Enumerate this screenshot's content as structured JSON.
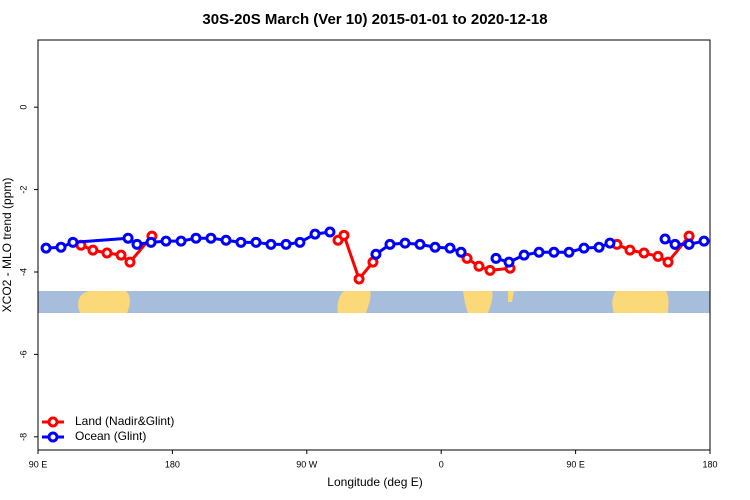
{
  "chart_data": {
    "type": "line",
    "title": "30S-20S March (Ver 10)   2015-01-01 to 2020-12-18",
    "x_label": "Longitude (deg E)",
    "y_label": "XCO2 - MLO trend (ppm)",
    "xlim": [
      90,
      540
    ],
    "xticks": [
      {
        "value": 90,
        "label": "90 E"
      },
      {
        "value": 180,
        "label": "180"
      },
      {
        "value": 270,
        "label": "90 W"
      },
      {
        "value": 360,
        "label": "0"
      },
      {
        "value": 450,
        "label": "90 E"
      },
      {
        "value": 540,
        "label": "180"
      }
    ],
    "ylim": [
      -8.32,
      1.63
    ],
    "yticks": [
      0,
      -2,
      -4,
      -6,
      -8
    ],
    "legend": "bottom-left",
    "series": [
      {
        "name": "Land (Nadir&Glint)",
        "color": "#ff0000",
        "x": [
          118.8,
          126.8,
          136.2,
          145.6,
          151.6,
          166.3,
          null,
          290.9,
          294.9,
          305.0,
          314.3,
          null,
          377.3,
          385.3,
          392.7,
          406.1,
          null,
          477.7,
          486.4,
          495.8,
          505.2,
          511.9,
          526.0
        ],
        "values": [
          -3.35,
          -3.47,
          -3.54,
          -3.59,
          -3.76,
          -3.13,
          null,
          -3.23,
          -3.11,
          -4.17,
          -3.76,
          null,
          -3.67,
          -3.86,
          -3.96,
          -3.91,
          null,
          -3.33,
          -3.47,
          -3.54,
          -3.62,
          -3.76,
          -3.13
        ]
      },
      {
        "name": "Ocean (Glint)",
        "color": "#0000ff",
        "x": [
          95.4,
          105.4,
          113.4,
          150.3,
          156.3,
          165.7,
          175.7,
          185.8,
          195.8,
          205.8,
          215.9,
          225.9,
          236.0,
          246.0,
          256.1,
          265.4,
          275.5,
          285.5,
          null,
          316.3,
          325.7,
          335.8,
          345.8,
          355.9,
          365.9,
          373.3,
          null,
          396.7,
          405.4,
          415.5,
          425.5,
          435.5,
          445.6,
          455.6,
          465.7,
          473.0,
          null,
          509.9,
          516.6,
          526.0,
          536.0
        ],
        "values": [
          -3.42,
          -3.4,
          -3.28,
          -3.18,
          -3.33,
          -3.28,
          -3.25,
          -3.25,
          -3.18,
          -3.18,
          -3.23,
          -3.28,
          -3.28,
          -3.33,
          -3.33,
          -3.28,
          -3.08,
          -3.03,
          null,
          -3.57,
          -3.33,
          -3.3,
          -3.33,
          -3.4,
          -3.42,
          -3.52,
          null,
          -3.67,
          -3.76,
          -3.59,
          -3.52,
          -3.52,
          -3.52,
          -3.42,
          -3.4,
          -3.3,
          null,
          -3.2,
          -3.33,
          -3.33,
          -3.25
        ]
      }
    ]
  }
}
